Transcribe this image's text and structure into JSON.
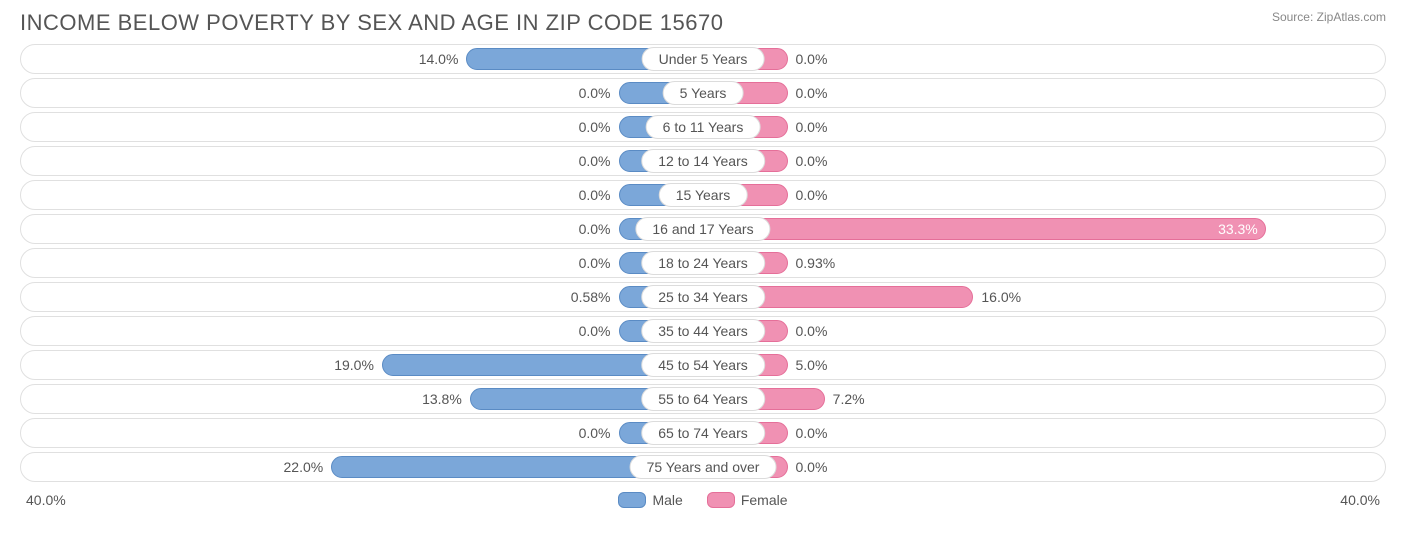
{
  "header": {
    "title": "INCOME BELOW POVERTY BY SEX AND AGE IN ZIP CODE 15670",
    "source": "Source: ZipAtlas.com"
  },
  "chart": {
    "type": "diverging-bar",
    "axis_max": 40.0,
    "axis_label_left": "40.0%",
    "axis_label_right": "40.0%",
    "min_bar_pct": 5.0,
    "colors": {
      "male_fill": "#7ba7d9",
      "male_border": "#5a8bc4",
      "female_fill": "#f091b3",
      "female_border": "#e56f99",
      "row_border": "#e0e0e0",
      "text": "#555555",
      "background": "#ffffff"
    },
    "legend": {
      "male": "Male",
      "female": "Female"
    },
    "rows": [
      {
        "category": "Under 5 Years",
        "male": 14.0,
        "male_label": "14.0%",
        "female": 0.0,
        "female_label": "0.0%"
      },
      {
        "category": "5 Years",
        "male": 0.0,
        "male_label": "0.0%",
        "female": 0.0,
        "female_label": "0.0%"
      },
      {
        "category": "6 to 11 Years",
        "male": 0.0,
        "male_label": "0.0%",
        "female": 0.0,
        "female_label": "0.0%"
      },
      {
        "category": "12 to 14 Years",
        "male": 0.0,
        "male_label": "0.0%",
        "female": 0.0,
        "female_label": "0.0%"
      },
      {
        "category": "15 Years",
        "male": 0.0,
        "male_label": "0.0%",
        "female": 0.0,
        "female_label": "0.0%"
      },
      {
        "category": "16 and 17 Years",
        "male": 0.0,
        "male_label": "0.0%",
        "female": 33.3,
        "female_label": "33.3%"
      },
      {
        "category": "18 to 24 Years",
        "male": 0.0,
        "male_label": "0.0%",
        "female": 0.93,
        "female_label": "0.93%"
      },
      {
        "category": "25 to 34 Years",
        "male": 0.58,
        "male_label": "0.58%",
        "female": 16.0,
        "female_label": "16.0%"
      },
      {
        "category": "35 to 44 Years",
        "male": 0.0,
        "male_label": "0.0%",
        "female": 0.0,
        "female_label": "0.0%"
      },
      {
        "category": "45 to 54 Years",
        "male": 19.0,
        "male_label": "19.0%",
        "female": 5.0,
        "female_label": "5.0%"
      },
      {
        "category": "55 to 64 Years",
        "male": 13.8,
        "male_label": "13.8%",
        "female": 7.2,
        "female_label": "7.2%"
      },
      {
        "category": "65 to 74 Years",
        "male": 0.0,
        "male_label": "0.0%",
        "female": 0.0,
        "female_label": "0.0%"
      },
      {
        "category": "75 Years and over",
        "male": 22.0,
        "male_label": "22.0%",
        "female": 0.0,
        "female_label": "0.0%"
      }
    ]
  }
}
